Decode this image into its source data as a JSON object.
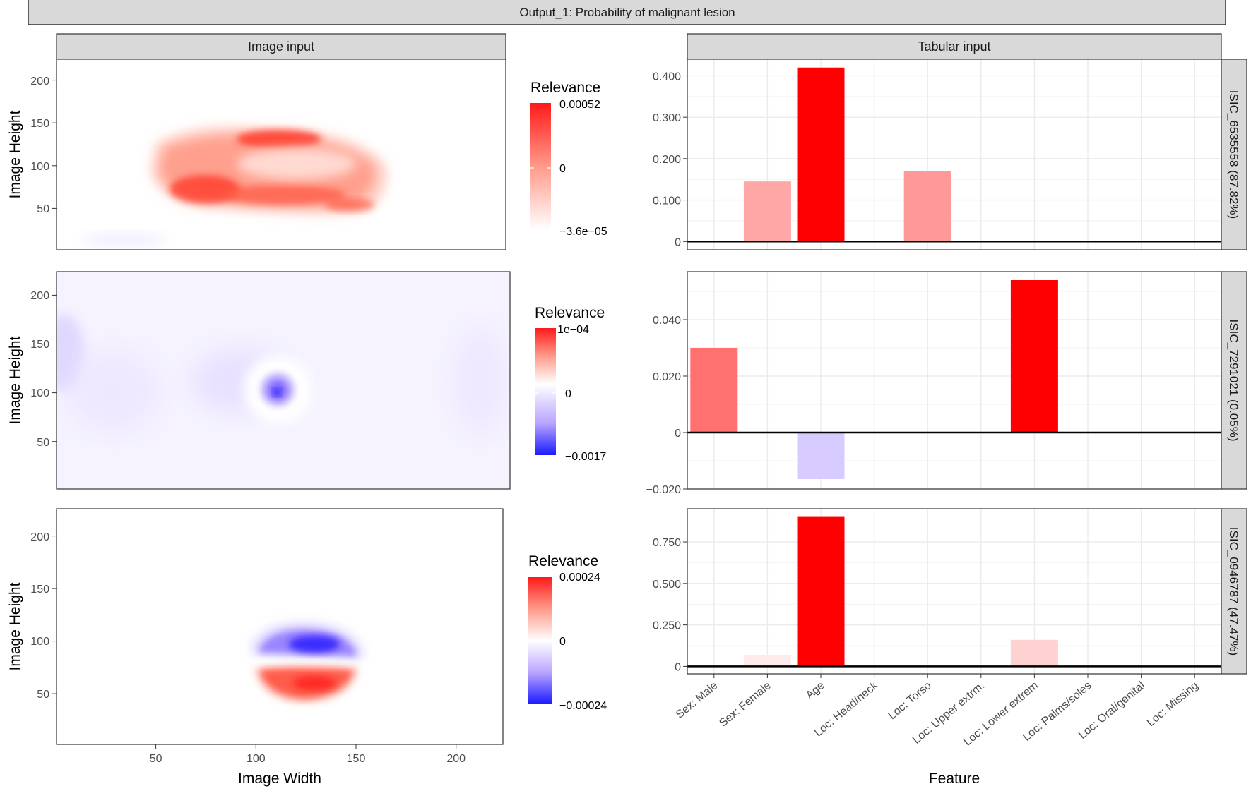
{
  "title": "Output_1: Probability of malignant lesion",
  "left_strip": "Image input",
  "right_strip": "Tabular input",
  "image_xlabel": "Image Width",
  "image_ylabel": "Image Height",
  "tab_xlabel": "Feature",
  "legend_title": "Relevance",
  "colors": {
    "strip_bg": "#d9d9d9",
    "positive": "#ff0000",
    "negative": "#0000ff",
    "mid": "#ffffff",
    "grid": "#ebebeb"
  },
  "chart_data": [
    {
      "type": "heatmap",
      "panel": "Image input",
      "sample": "ISIC_6535558 (87.82%)",
      "xlabel": "",
      "ylabel": "Image Height",
      "y_ticks": [
        50,
        100,
        150,
        200
      ],
      "xlim": [
        1,
        224
      ],
      "ylim": [
        1,
        224
      ],
      "legend": {
        "title": "Relevance",
        "max_label": "0.00052",
        "mid_label": "0",
        "min_label": "−3.6e−05"
      },
      "pattern": "red lesion blob (positive relevance) centred near x=115, y=95"
    },
    {
      "type": "bar",
      "panel": "Tabular input",
      "sample": "ISIC_6535558 (87.82%)",
      "categories": [
        "Sex: Male",
        "Sex: Female",
        "Age",
        "Loc: Head/neck",
        "Loc: Torso",
        "Loc: Upper extrm.",
        "Loc: Lower extrem",
        "Loc: Palms/soles",
        "Loc: Oral/genital",
        "Loc: Missing"
      ],
      "values": [
        0,
        0.145,
        0.42,
        0,
        0.17,
        0,
        0,
        0,
        0,
        0
      ],
      "ylim": [
        -0.02,
        0.44
      ],
      "y_ticks": [
        0,
        0.1,
        0.2,
        0.3,
        0.4
      ],
      "y_tick_labels": [
        "0",
        "0.100",
        "0.200",
        "0.300",
        "0.400"
      ]
    },
    {
      "type": "heatmap",
      "panel": "Image input",
      "sample": "ISIC_7291021 (0.05%)",
      "xlabel": "",
      "ylabel": "Image Height",
      "y_ticks": [
        50,
        100,
        150,
        200
      ],
      "xlim": [
        1,
        224
      ],
      "ylim": [
        1,
        224
      ],
      "legend": {
        "title": "Relevance",
        "max_label": "1e−04",
        "mid_label": "0",
        "min_label": "−0.0017"
      },
      "pattern": "faint blue background with a small dark blue spot near x=112, y=100 surrounded by a white ring"
    },
    {
      "type": "bar",
      "panel": "Tabular input",
      "sample": "ISIC_7291021 (0.05%)",
      "categories": [
        "Sex: Male",
        "Sex: Female",
        "Age",
        "Loc: Head/neck",
        "Loc: Torso",
        "Loc: Upper extrm.",
        "Loc: Lower extrem",
        "Loc: Palms/soles",
        "Loc: Oral/genital",
        "Loc: Missing"
      ],
      "values": [
        0.03,
        0,
        -0.0165,
        0,
        0,
        0,
        0.054,
        0,
        0,
        0
      ],
      "ylim": [
        -0.02,
        0.057
      ],
      "y_ticks": [
        -0.02,
        0,
        0.02,
        0.04
      ],
      "y_tick_labels": [
        "−0.020",
        "0",
        "0.020",
        "0.040"
      ]
    },
    {
      "type": "heatmap",
      "panel": "Image input",
      "sample": "ISIC_0946787 (47.47%)",
      "xlabel": "Image Width",
      "ylabel": "Image Height",
      "x_ticks": [
        50,
        100,
        150,
        200
      ],
      "y_ticks": [
        50,
        100,
        150,
        200
      ],
      "xlim": [
        1,
        224
      ],
      "ylim": [
        1,
        224
      ],
      "legend": {
        "title": "Relevance",
        "max_label": "0.00024",
        "mid_label": "0",
        "min_label": "−0.00024"
      },
      "pattern": "blue blob above (y≈95) and red blob below (y≈50) separated by a white band, centred near x=125"
    },
    {
      "type": "bar",
      "panel": "Tabular input",
      "sample": "ISIC_0946787 (47.47%)",
      "categories": [
        "Sex: Male",
        "Sex: Female",
        "Age",
        "Loc: Head/neck",
        "Loc: Torso",
        "Loc: Upper extrm.",
        "Loc: Lower extrem",
        "Loc: Palms/soles",
        "Loc: Oral/genital",
        "Loc: Missing"
      ],
      "values": [
        0,
        0.07,
        0.905,
        0,
        0,
        0,
        0.16,
        0,
        0,
        0
      ],
      "ylim": [
        -0.045,
        0.95
      ],
      "y_ticks": [
        0,
        0.25,
        0.5,
        0.75
      ],
      "y_tick_labels": [
        "0",
        "0.250",
        "0.500",
        "0.750"
      ]
    }
  ]
}
